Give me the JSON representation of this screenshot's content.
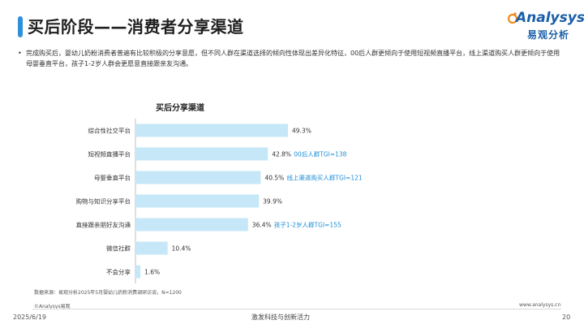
{
  "header": {
    "title": "买后阶段——消费者分享渠道",
    "logo_en": "Analysys",
    "logo_cn": "易观分析",
    "brand_color": "#2f8fd8"
  },
  "summary": {
    "bullet": "•",
    "text": "完成购买后，婴幼儿奶粉消费者普遍有比较积极的分享意愿，但不同人群在渠道选择的倾向性体现出差异化特征，00后人群更倾向于使用短视频直播平台，线上渠道购买人群更倾向于使用母婴垂直平台，孩子1-2岁人群会更愿意直接跟亲友沟通。"
  },
  "chart_data": {
    "type": "bar",
    "orientation": "horizontal",
    "title": "买后分享渠道",
    "categories": [
      "综合性社交平台",
      "短视频直播平台",
      "母婴垂直平台",
      "购物与知识分享平台",
      "直接跟亲朋好友沟通",
      "微信社群",
      "不会分享"
    ],
    "values": [
      49.3,
      42.8,
      40.5,
      39.9,
      36.4,
      10.4,
      1.6
    ],
    "value_labels": [
      "49.3%",
      "42.8%",
      "40.5%",
      "39.9%",
      "36.4%",
      "10.4%",
      "1.6%"
    ],
    "bar_color": "#c5e7f7",
    "annotation_color": "#1f8fd6",
    "annotations": [
      {
        "category": "短视频直播平台",
        "text": "00后人群TGI=138"
      },
      {
        "category": "母婴垂直平台",
        "text": "线上渠道购买人群TGI=121"
      },
      {
        "category": "直接跟亲朋好友沟通",
        "text": "孩子1-2岁人群TGI=155"
      }
    ],
    "xlim": [
      0,
      100
    ],
    "grid": false,
    "legend": "none"
  },
  "footer": {
    "source": "数据来源：易观分析2025年5月婴幼儿奶粉消费调研访谈，N=1200",
    "copyright_left": "©Analysys易观",
    "copyright_right": "www.analysys.cn",
    "date": "2025/6/19",
    "slogan": "激发科技与创新活力",
    "page": "20"
  }
}
